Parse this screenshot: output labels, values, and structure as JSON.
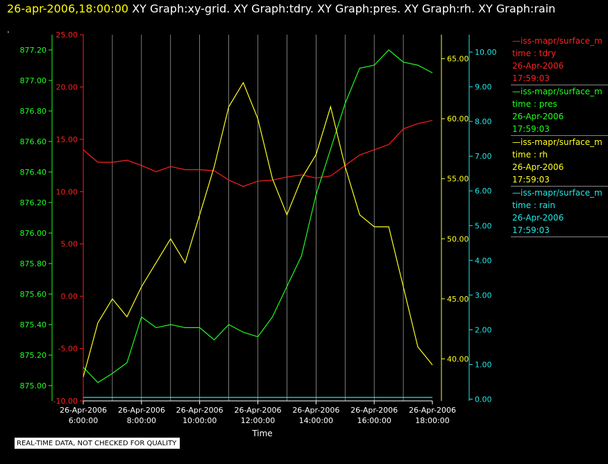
{
  "header": {
    "timestamp": "26-apr-2006,18:00:00",
    "graphs": [
      "XY Graph:xy-grid.",
      "XY Graph:tdry.",
      "XY Graph:pres.",
      "XY Graph:rh.",
      "XY Graph:rain"
    ]
  },
  "marker": ".",
  "note": "REAL-TIME DATA, NOT CHECKED FOR QUALITY",
  "colors": {
    "tdry": "#ff2020",
    "pres": "#20ff20",
    "rh": "#ffff20",
    "rain": "#20e8e8",
    "grid": "#b0b0b0",
    "text": "#ffffff"
  },
  "legend": [
    {
      "title": "—iss-mapr/surface_m",
      "line1": "time : tdry",
      "line2": "26-Apr-2006",
      "line3": "17:59:03",
      "color": "#ff2020"
    },
    {
      "title": "—iss-mapr/surface_m",
      "line1": "time : pres",
      "line2": "26-Apr-2006",
      "line3": "17:59:03",
      "color": "#20ff20"
    },
    {
      "title": "—iss-mapr/surface_m",
      "line1": "time : rh",
      "line2": "26-Apr-2006",
      "line3": "17:59:03",
      "color": "#ffff20"
    },
    {
      "title": "—iss-mapr/surface_m",
      "line1": "time : rain",
      "line2": "26-Apr-2006",
      "line3": "17:59:03",
      "color": "#20e8e8"
    }
  ],
  "chart_data": {
    "type": "line",
    "xlabel": "Time",
    "x": [
      "06:00",
      "06:30",
      "07:00",
      "07:30",
      "08:00",
      "08:30",
      "09:00",
      "09:30",
      "10:00",
      "10:30",
      "11:00",
      "11:30",
      "12:00",
      "12:30",
      "13:00",
      "13:30",
      "14:00",
      "14:30",
      "15:00",
      "15:30",
      "16:00",
      "16:30",
      "17:00",
      "17:30",
      "18:00"
    ],
    "x_ticks": [
      {
        "date": "26-Apr-2006",
        "time": "6:00:00"
      },
      {
        "date": "26-Apr-2006",
        "time": "8:00:00"
      },
      {
        "date": "26-Apr-2006",
        "time": "10:00:00"
      },
      {
        "date": "26-Apr-2006",
        "time": "12:00:00"
      },
      {
        "date": "26-Apr-2006",
        "time": "14:00:00"
      },
      {
        "date": "26-Apr-2006",
        "time": "16:00:00"
      },
      {
        "date": "26-Apr-2006",
        "time": "18:00:00"
      }
    ],
    "x_range": [
      "06:00",
      "18:00"
    ],
    "grid": "vertical",
    "axes": {
      "pres": {
        "ylim": [
          874.9,
          877.3
        ],
        "ticks": [
          "875.00",
          "875.20",
          "875.40",
          "875.60",
          "875.80",
          "876.00",
          "876.20",
          "876.40",
          "876.60",
          "876.80",
          "877.00",
          "877.20"
        ]
      },
      "tdry": {
        "ylim": [
          -10,
          25
        ],
        "ticks": [
          "-10.00",
          "-5.00",
          "0.00",
          "5.00",
          "10.00",
          "15.00",
          "20.00",
          "25.00"
        ]
      },
      "rh": {
        "ylim": [
          36.5,
          67
        ],
        "ticks": [
          "40.00",
          "45.00",
          "50.00",
          "55.00",
          "60.00",
          "65.00"
        ]
      },
      "rain": {
        "ylim": [
          -0.05,
          10.5
        ],
        "ticks": [
          "0.00",
          "1.00",
          "2.00",
          "3.00",
          "4.00",
          "5.00",
          "6.00",
          "7.00",
          "8.00",
          "9.00",
          "10.00"
        ]
      }
    },
    "series": [
      {
        "name": "tdry",
        "values": [
          14.0,
          12.8,
          12.8,
          13.0,
          12.5,
          11.9,
          12.4,
          12.1,
          12.1,
          12.0,
          11.1,
          10.5,
          11.0,
          11.1,
          11.4,
          11.6,
          11.3,
          11.5,
          12.5,
          13.5,
          14.0,
          14.5,
          16.0,
          16.5,
          16.8
        ]
      },
      {
        "name": "pres",
        "values": [
          875.12,
          875.02,
          875.08,
          875.15,
          875.45,
          875.38,
          875.4,
          875.38,
          875.38,
          875.3,
          875.4,
          875.35,
          875.32,
          875.45,
          875.65,
          875.85,
          876.25,
          876.55,
          876.85,
          877.08,
          877.1,
          877.2,
          877.12,
          877.1,
          877.05
        ]
      },
      {
        "name": "rh",
        "values": [
          38.5,
          43.0,
          45.0,
          43.5,
          46.0,
          48.0,
          50.0,
          48.0,
          52.0,
          56.0,
          61.0,
          63.0,
          60.0,
          55.0,
          52.0,
          55.0,
          57.0,
          61.0,
          56.0,
          52.0,
          51.0,
          51.0,
          46.0,
          41.0,
          39.5
        ]
      },
      {
        "name": "rain",
        "values": [
          0.05,
          0.05,
          0.05,
          0.05,
          0.05,
          0.05,
          0.05,
          0.05,
          0.05,
          0.05,
          0.05,
          0.05,
          0.05,
          0.05,
          0.05,
          0.05,
          0.05,
          0.05,
          0.05,
          0.05,
          0.05,
          0.05,
          0.05,
          0.05,
          0.05
        ]
      }
    ]
  }
}
